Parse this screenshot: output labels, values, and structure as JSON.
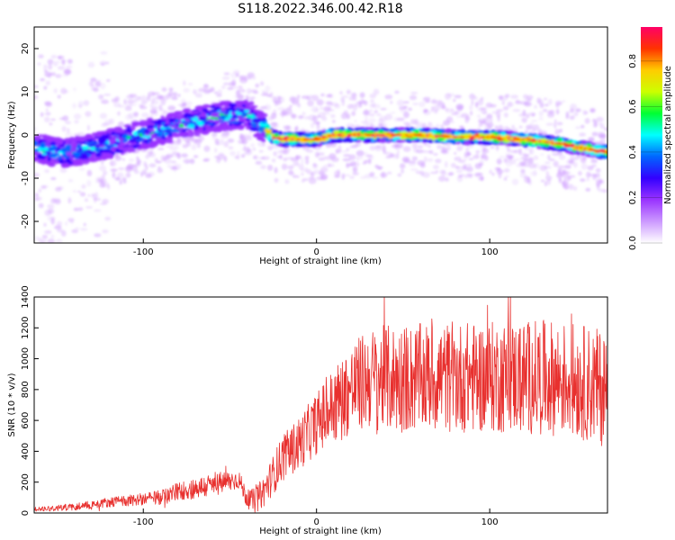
{
  "figure": {
    "title": "S118.2022.346.00.42.R18"
  },
  "chart_data": [
    {
      "type": "heatmap",
      "xlabel": "Height of straight line (km)",
      "ylabel": "Frequency (Hz)",
      "xlim": [
        -163,
        168
      ],
      "ylim": [
        -25,
        25
      ],
      "xticks": [
        -100,
        0,
        100
      ],
      "xtick_labels": [
        "-100",
        "0",
        "100"
      ],
      "yticks": [
        -20,
        -10,
        0,
        10,
        20
      ],
      "ytick_labels": [
        "-20",
        "-10",
        "0",
        "10",
        "20"
      ],
      "ridge_center": [
        [
          -163,
          -3
        ],
        [
          -150,
          -4
        ],
        [
          -140,
          -4
        ],
        [
          -130,
          -3
        ],
        [
          -120,
          -2
        ],
        [
          -110,
          -1
        ],
        [
          -100,
          0
        ],
        [
          -90,
          1
        ],
        [
          -80,
          2
        ],
        [
          -70,
          3
        ],
        [
          -60,
          4
        ],
        [
          -50,
          4.5
        ],
        [
          -42,
          5
        ],
        [
          -38,
          4.5
        ],
        [
          -35,
          3
        ],
        [
          -30,
          1.5
        ],
        [
          -25,
          -0.5
        ],
        [
          -20,
          -1
        ],
        [
          -10,
          -1
        ],
        [
          0,
          -1
        ],
        [
          10,
          0
        ],
        [
          20,
          0
        ],
        [
          40,
          0
        ],
        [
          60,
          0
        ],
        [
          80,
          -0.5
        ],
        [
          100,
          -0.5
        ],
        [
          120,
          -1
        ],
        [
          140,
          -2
        ],
        [
          160,
          -3.5
        ],
        [
          168,
          -4
        ]
      ],
      "colorbar": {
        "label": "Normalized spectral amplitude",
        "range": [
          0,
          0.95
        ],
        "ticks": [
          0.0,
          0.2,
          0.4,
          0.6,
          0.8
        ],
        "tick_labels": [
          "0.0",
          "0.2",
          "0.4",
          "0.6",
          "0.8"
        ],
        "colors": [
          "#ffffff",
          "#cc99ff",
          "#9933ff",
          "#3300ff",
          "#0066ff",
          "#00ffff",
          "#00ff33",
          "#ccff00",
          "#ffcc00",
          "#ff3300",
          "#ff0066"
        ]
      }
    },
    {
      "type": "line",
      "xlabel": "Height of straight line (km)",
      "ylabel": "SNR (10 * v/v)",
      "xlim": [
        -163,
        168
      ],
      "ylim": [
        0,
        1400
      ],
      "xticks": [
        -100,
        0,
        100
      ],
      "xtick_labels": [
        "-100",
        "0",
        "100"
      ],
      "yticks": [
        0,
        200,
        400,
        600,
        800,
        1000,
        1200,
        1400
      ],
      "ytick_labels": [
        "0",
        "200",
        "400",
        "600",
        "800",
        "1000",
        "1200",
        "1400"
      ],
      "color": "#e8302e",
      "trend": [
        [
          -163,
          25
        ],
        [
          -140,
          40
        ],
        [
          -120,
          70
        ],
        [
          -100,
          90
        ],
        [
          -90,
          100
        ],
        [
          -80,
          140
        ],
        [
          -60,
          180
        ],
        [
          -45,
          220
        ],
        [
          -40,
          90
        ],
        [
          -35,
          80
        ],
        [
          -30,
          150
        ],
        [
          -20,
          350
        ],
        [
          -10,
          450
        ],
        [
          0,
          580
        ],
        [
          10,
          700
        ],
        [
          20,
          800
        ],
        [
          30,
          870
        ],
        [
          50,
          870
        ],
        [
          70,
          880
        ],
        [
          90,
          880
        ],
        [
          110,
          880
        ],
        [
          130,
          880
        ],
        [
          150,
          860
        ],
        [
          168,
          800
        ]
      ],
      "noise_amplitude": [
        [
          -163,
          15
        ],
        [
          -100,
          40
        ],
        [
          -60,
          80
        ],
        [
          -40,
          60
        ],
        [
          -20,
          150
        ],
        [
          0,
          200
        ],
        [
          20,
          300
        ],
        [
          40,
          350
        ],
        [
          168,
          380
        ]
      ],
      "peak_value": 1400
    }
  ]
}
